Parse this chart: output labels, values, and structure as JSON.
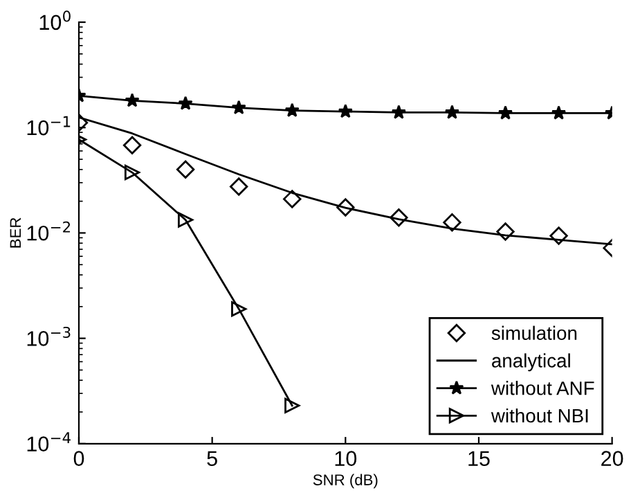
{
  "chart_data": {
    "type": "line",
    "xlabel": "SNR (dB)",
    "ylabel": "BER",
    "log": "y",
    "legend": "bottom right",
    "grid": false,
    "xlim": [
      0,
      20
    ],
    "xticks": [
      0,
      5,
      10,
      15,
      20
    ],
    "ylim": [
      0.0001,
      1
    ],
    "yticks": [
      {
        "value": 0.0001,
        "label": "10$^{−4}$"
      },
      {
        "value": 0.001,
        "label": "10$^{−3}$"
      },
      {
        "value": 0.01,
        "label": "10$^{−2}$"
      },
      {
        "value": 0.1,
        "label": "10$^{−1}$"
      },
      {
        "value": 1,
        "label": "10$^{0}$"
      }
    ],
    "series": [
      {
        "name": "simulation",
        "type": "scatter",
        "marker": "diamond",
        "color": "#000000",
        "x": [
          0,
          2,
          4,
          6,
          8,
          10,
          12,
          14,
          16,
          18,
          20
        ],
        "values": [
          0.111,
          0.068,
          0.04,
          0.0275,
          0.021,
          0.0175,
          0.014,
          0.0126,
          0.0103,
          0.0094,
          0.0072
        ]
      },
      {
        "name": "analytical",
        "marker": "none",
        "line_style": "solid",
        "color": "#000000",
        "x": [
          0,
          2,
          4,
          6,
          8,
          10,
          12,
          14,
          16,
          18,
          20
        ],
        "values": [
          0.125,
          0.088,
          0.056,
          0.036,
          0.024,
          0.0173,
          0.0135,
          0.011,
          0.0095,
          0.0086,
          0.0078
        ]
      },
      {
        "name": "without ANF",
        "marker": "star",
        "line_style": "solid",
        "color": "#000000",
        "x": [
          0,
          2,
          4,
          6,
          8,
          10,
          12,
          14,
          16,
          18,
          20
        ],
        "values": [
          0.2,
          0.18,
          0.169,
          0.154,
          0.145,
          0.142,
          0.139,
          0.139,
          0.137,
          0.137,
          0.137
        ]
      },
      {
        "name": "without NBI",
        "marker": "triangle",
        "line_style": "solid",
        "color": "#000000",
        "x": [
          0,
          2,
          4,
          6,
          8
        ],
        "values": [
          0.077,
          0.0375,
          0.0133,
          0.0019,
          0.00023
        ]
      }
    ]
  }
}
